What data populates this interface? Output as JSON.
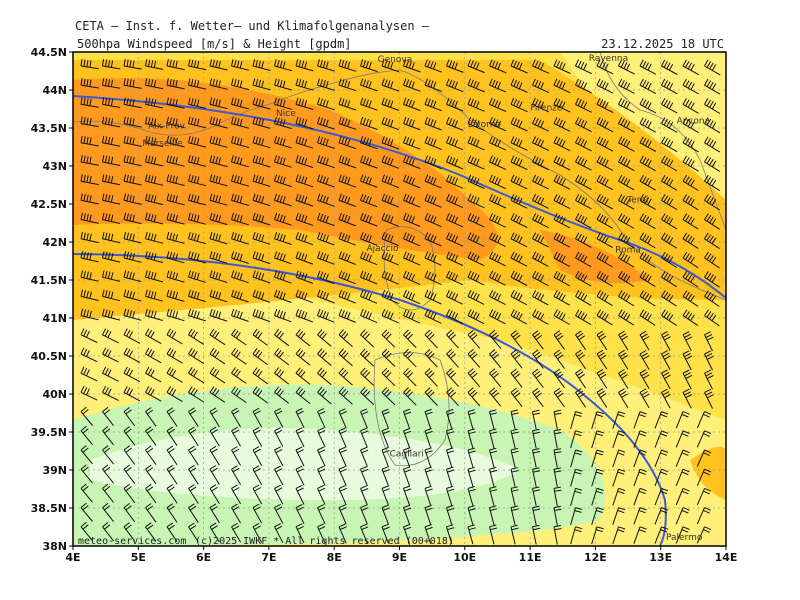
{
  "header": {
    "org": "CETA — Inst. f. Wetter— und Klimafolgenanalysen —",
    "title": "500hpa Windspeed [m/s] & Height [gpdm]",
    "date": "23.12.2025 18 UTC"
  },
  "map": {
    "lon_range": [
      4,
      14
    ],
    "lat_range": [
      38,
      44.5
    ],
    "lat_ticks": [
      "44.5N",
      "44N",
      "43.5N",
      "43N",
      "42.5N",
      "42N",
      "41.5N",
      "41N",
      "40.5N",
      "40N",
      "39.5N",
      "39N",
      "38.5N",
      "38N"
    ],
    "lon_ticks": [
      "4E",
      "5E",
      "6E",
      "7E",
      "8E",
      "9E",
      "10E",
      "11E",
      "12E",
      "13E",
      "14E"
    ],
    "cities": [
      {
        "name": "Genova",
        "lon": 8.93,
        "lat": 44.41
      },
      {
        "name": "Ravenna",
        "lon": 12.2,
        "lat": 44.42
      },
      {
        "name": "Nice",
        "lon": 7.26,
        "lat": 43.7
      },
      {
        "name": "Firenze",
        "lon": 11.25,
        "lat": 43.77
      },
      {
        "name": "Aix-Prov.",
        "lon": 5.45,
        "lat": 43.53
      },
      {
        "name": "Livorno",
        "lon": 10.3,
        "lat": 43.55
      },
      {
        "name": "Ancona",
        "lon": 13.5,
        "lat": 43.6
      },
      {
        "name": "Marseille",
        "lon": 5.37,
        "lat": 43.3
      },
      {
        "name": "Terni",
        "lon": 12.65,
        "lat": 42.56
      },
      {
        "name": "Ajaccio",
        "lon": 8.74,
        "lat": 41.92
      },
      {
        "name": "Roma",
        "lon": 12.5,
        "lat": 41.9
      },
      {
        "name": "Cagliari",
        "lon": 9.11,
        "lat": 39.22
      },
      {
        "name": "Palermo",
        "lon": 13.36,
        "lat": 38.12
      }
    ],
    "colors": {
      "light_yellow": "#fff07a",
      "yellow": "#ffe14a",
      "orange_light": "#ffc21e",
      "orange": "#ff9a1e",
      "light_green": "#c8f5b4",
      "pale_green": "#e8fbdc",
      "height_line": "#3a5bd0"
    }
  },
  "footer": {
    "site": "meteo-services.com",
    "copyright": "(c)2025 IWKF * All rights reserved (00+018)"
  }
}
